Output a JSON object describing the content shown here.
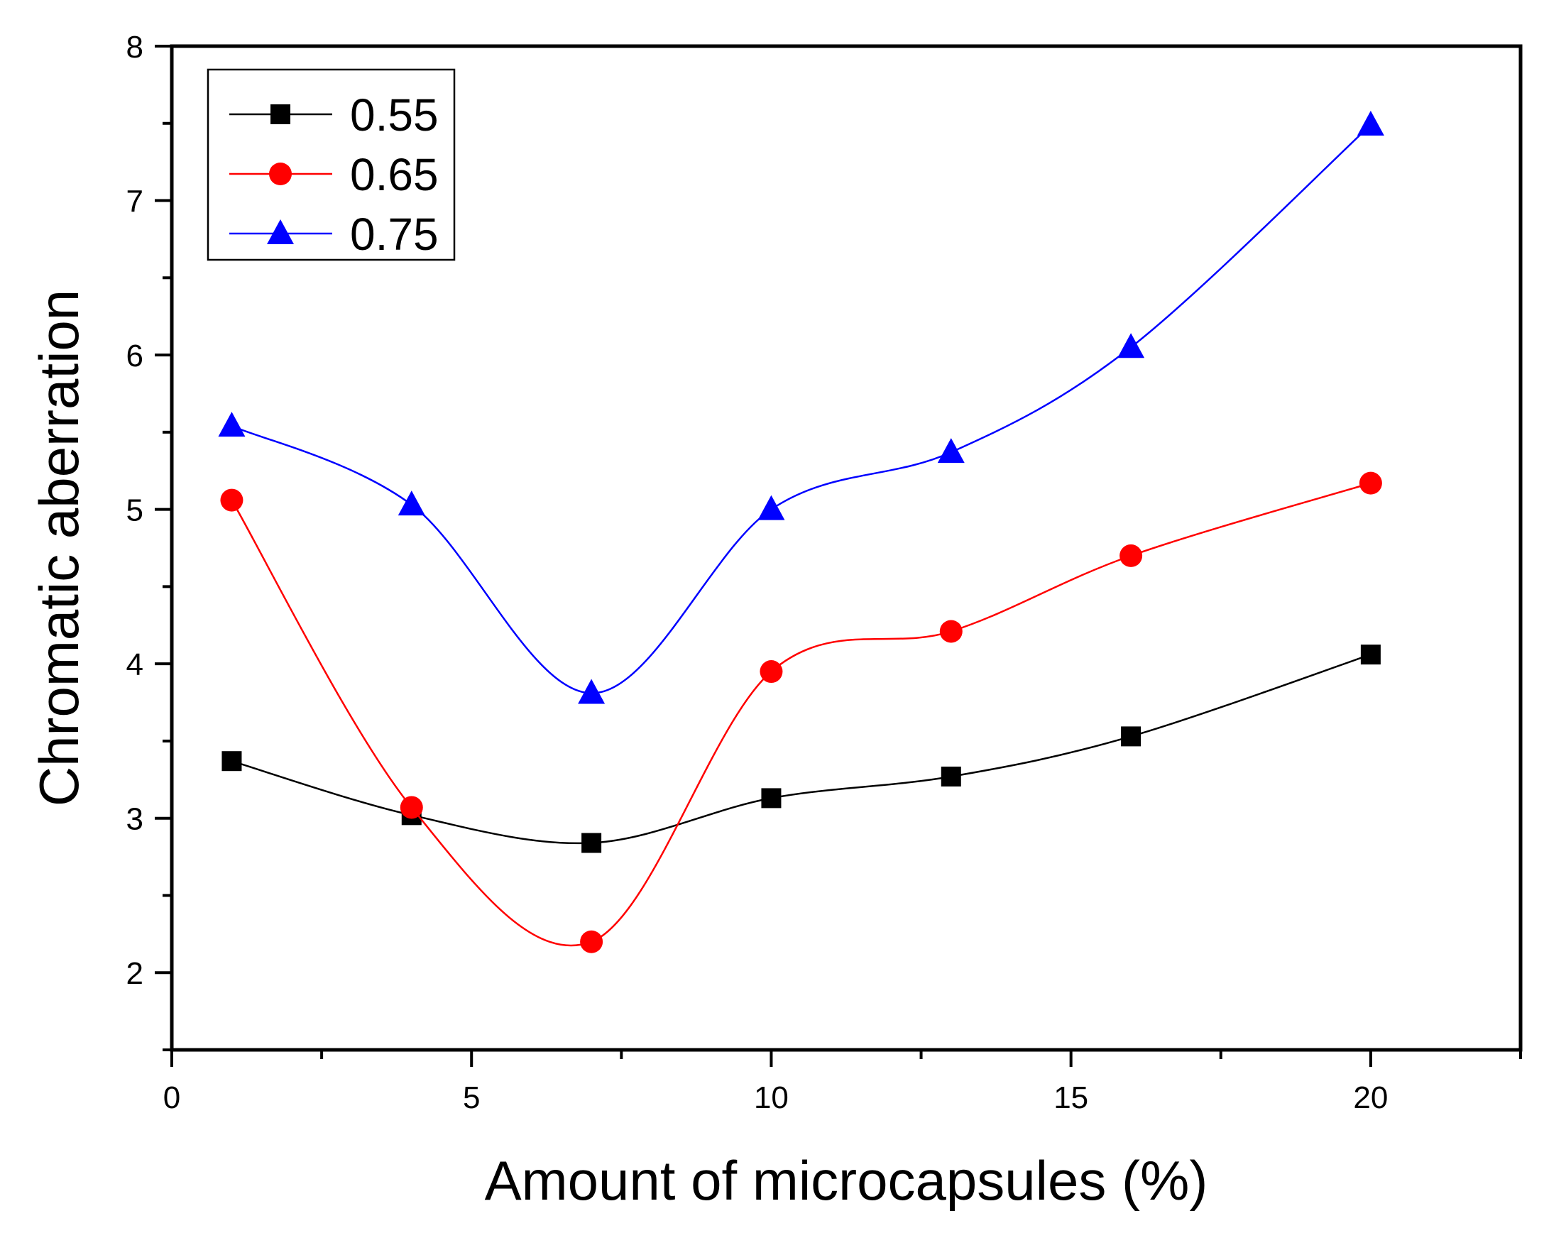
{
  "chart_data": {
    "type": "line",
    "title": "",
    "xlabel": "Amount of microcapsules (%)",
    "ylabel": "Chromatic aberration",
    "xlim": [
      0,
      22.5
    ],
    "ylim": [
      1.5,
      8
    ],
    "xticks": [
      0,
      5,
      10,
      15,
      20
    ],
    "xtick_labels": [
      "0",
      "5",
      "10",
      "15",
      "20"
    ],
    "yticks": [
      2,
      3,
      4,
      5,
      6,
      7,
      8
    ],
    "ytick_labels": [
      "2",
      "3",
      "4",
      "5",
      "6",
      "7",
      "8"
    ],
    "grid": false,
    "legend_position": "top-left",
    "x": [
      1,
      4,
      7,
      10,
      13,
      16,
      20
    ],
    "series": [
      {
        "name": "0.55",
        "marker": "square",
        "color": "#000000",
        "values": [
          3.37,
          3.02,
          2.84,
          3.13,
          3.27,
          3.53,
          4.06
        ]
      },
      {
        "name": "0.65",
        "marker": "circle",
        "color": "#ff0000",
        "values": [
          5.06,
          3.07,
          2.2,
          3.95,
          4.21,
          4.7,
          5.17
        ]
      },
      {
        "name": "0.75",
        "marker": "triangle",
        "color": "#0000ff",
        "values": [
          5.54,
          5.03,
          3.81,
          5.0,
          5.37,
          6.05,
          7.49
        ]
      }
    ]
  }
}
